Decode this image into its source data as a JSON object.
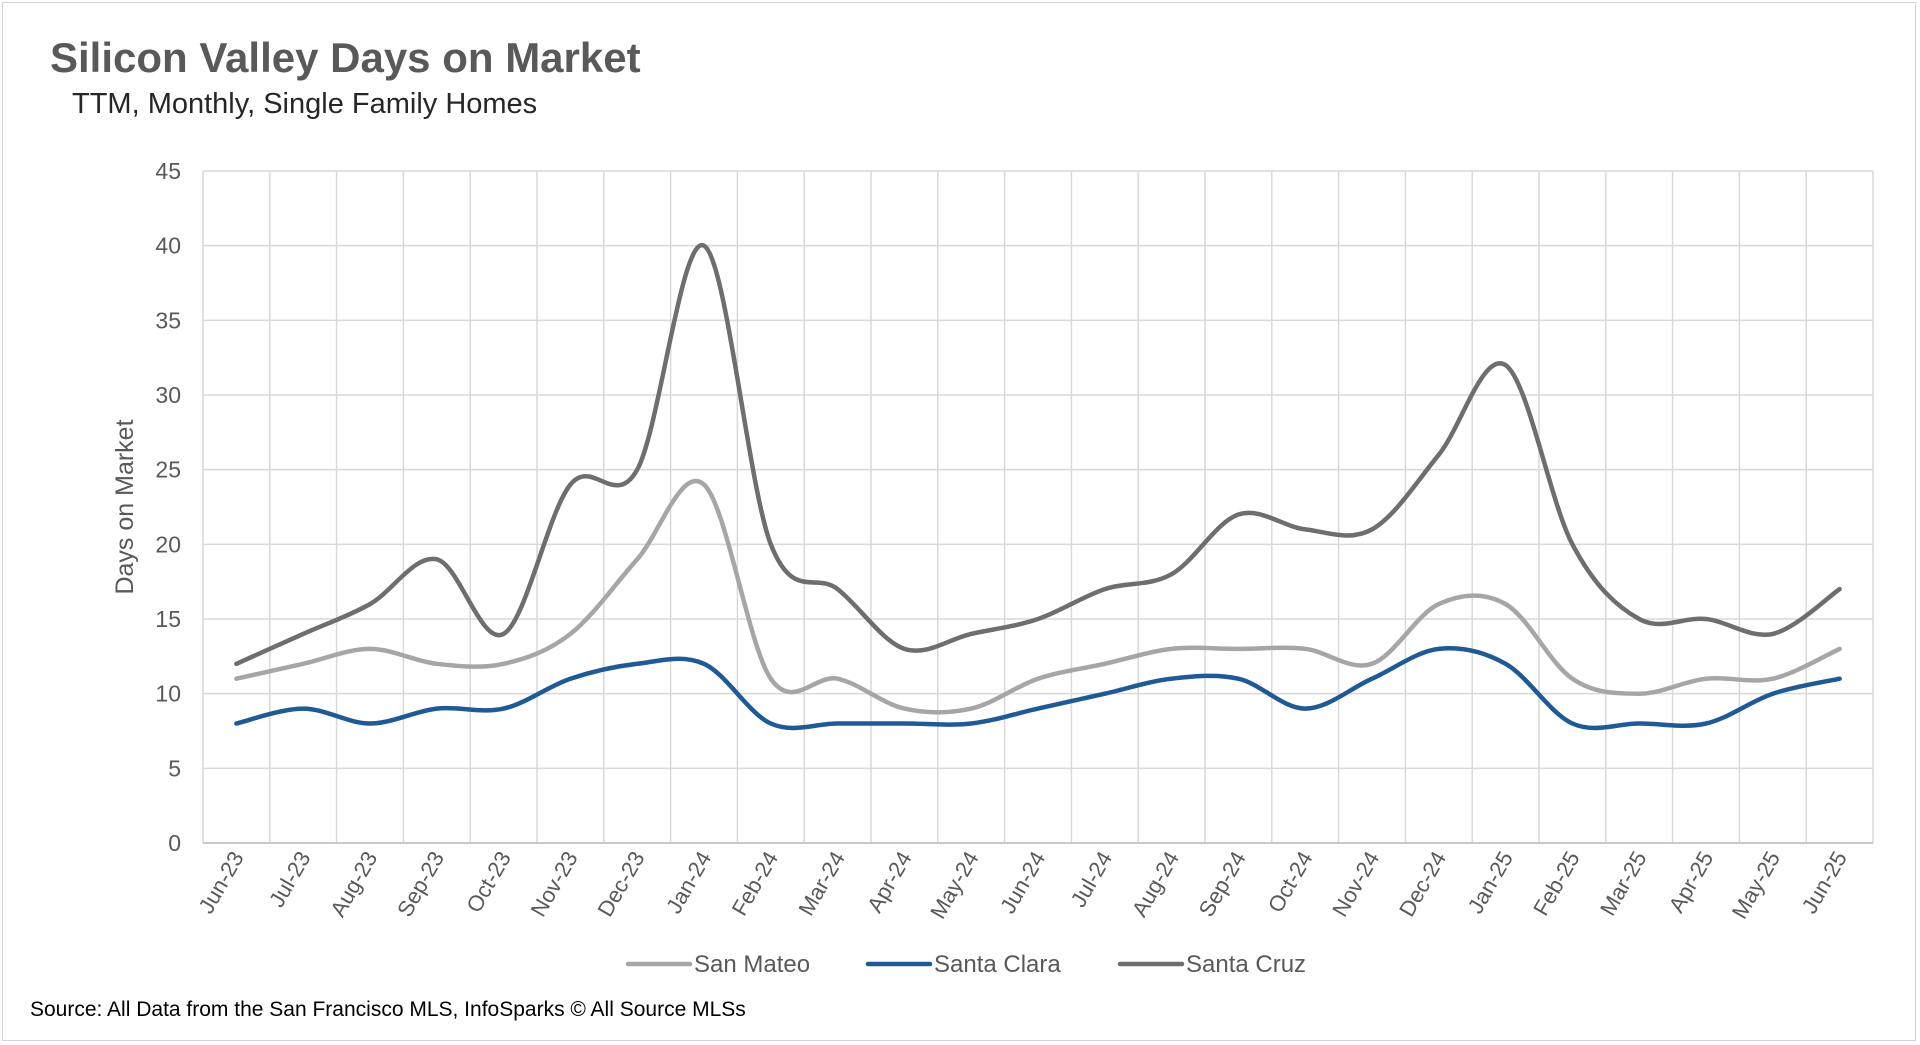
{
  "header": {
    "title": "Silicon Valley Days on Market",
    "subtitle": "TTM, Monthly, Single Family Homes"
  },
  "footer": {
    "source": "Source: All Data from the San Francisco MLS, InfoSparks © All Source MLSs"
  },
  "chart_data": {
    "type": "line",
    "title": "Silicon Valley Days on Market",
    "subtitle": "TTM, Monthly, Single Family Homes",
    "xlabel": "",
    "ylabel": "Days on Market",
    "ylim": [
      0,
      45
    ],
    "yticks": [
      0,
      5,
      10,
      15,
      20,
      25,
      30,
      35,
      40,
      45
    ],
    "grid": true,
    "smooth": true,
    "legend_position": "bottom",
    "categories": [
      "Jun-23",
      "Jul-23",
      "Aug-23",
      "Sep-23",
      "Oct-23",
      "Nov-23",
      "Dec-23",
      "Jan-24",
      "Feb-24",
      "Mar-24",
      "Apr-24",
      "May-24",
      "Jun-24",
      "Jul-24",
      "Aug-24",
      "Sep-24",
      "Oct-24",
      "Nov-24",
      "Dec-24",
      "Jan-25",
      "Feb-25",
      "Mar-25",
      "Apr-25",
      "May-25",
      "Jun-25"
    ],
    "series": [
      {
        "name": "San Mateo",
        "color": "#a6a6a6",
        "values": [
          11,
          12,
          13,
          12,
          12,
          14,
          19,
          24,
          11,
          11,
          9,
          9,
          11,
          12,
          13,
          13,
          13,
          12,
          16,
          16,
          11,
          10,
          11,
          11,
          13
        ]
      },
      {
        "name": "Santa Clara",
        "color": "#1f5a96",
        "values": [
          8,
          9,
          8,
          9,
          9,
          11,
          12,
          12,
          8,
          8,
          8,
          8,
          9,
          10,
          11,
          11,
          9,
          11,
          13,
          12,
          8,
          8,
          8,
          10,
          11
        ]
      },
      {
        "name": "Santa Cruz",
        "color": "#6e6e6e",
        "values": [
          12,
          14,
          16,
          19,
          14,
          24,
          25,
          40,
          20,
          17,
          13,
          14,
          15,
          17,
          18,
          22,
          21,
          21,
          26,
          32,
          20,
          15,
          15,
          14,
          17
        ]
      }
    ]
  }
}
